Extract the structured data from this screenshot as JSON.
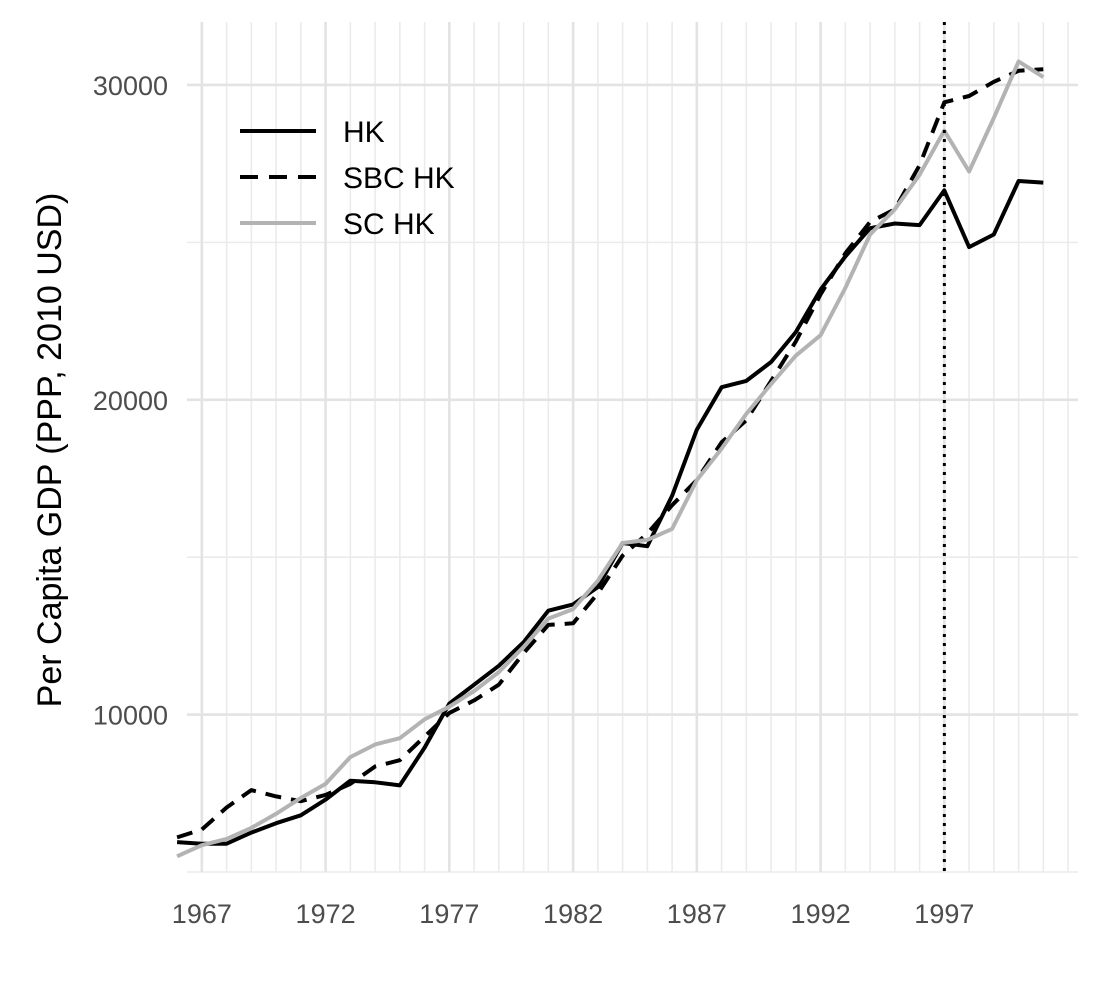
{
  "chart_data": {
    "type": "line",
    "title": "",
    "xlabel": "",
    "ylabel": "Per Capita GDP (PPP, 2010 USD)",
    "xlim": [
      1966.4,
      2002.4
    ],
    "ylim": [
      5000,
      32000
    ],
    "x_ticks": [
      1967,
      1972,
      1977,
      1982,
      1987,
      1992,
      1997
    ],
    "y_ticks": [
      10000,
      20000,
      30000
    ],
    "x_tick_labels": [
      "1967",
      "1972",
      "1977",
      "1982",
      "1987",
      "1992",
      "1997"
    ],
    "y_tick_labels": [
      "10000",
      "20000",
      "30000"
    ],
    "y_minor_ticks": [
      5000,
      15000,
      25000
    ],
    "grid": true,
    "legend_position": "top-left",
    "vline": {
      "x": 1997,
      "style": "dotted",
      "color": "#000000"
    },
    "x": [
      1966,
      1967,
      1968,
      1969,
      1970,
      1971,
      1972,
      1973,
      1974,
      1975,
      1976,
      1977,
      1978,
      1979,
      1980,
      1981,
      1982,
      1983,
      1984,
      1985,
      1986,
      1987,
      1988,
      1989,
      1990,
      1991,
      1992,
      1993,
      1994,
      1995,
      1996,
      1997,
      1998,
      1999,
      2000,
      2001
    ],
    "series": [
      {
        "name": "HK",
        "style": "solid",
        "color": "#000000",
        "values": [
          5950,
          5900,
          5900,
          6250,
          6550,
          6800,
          7300,
          7900,
          7850,
          7750,
          8950,
          10350,
          10950,
          11550,
          12300,
          13300,
          13500,
          14050,
          15450,
          15350,
          16950,
          19050,
          20400,
          20600,
          21200,
          22150,
          23500,
          24550,
          25450,
          25600,
          25550,
          26650,
          24850,
          25250,
          26950,
          26900
        ]
      },
      {
        "name": "SBC HK",
        "style": "dashed",
        "color": "#000000",
        "values": [
          6100,
          6350,
          7050,
          7600,
          7400,
          7250,
          7450,
          7800,
          8350,
          8550,
          9300,
          10050,
          10450,
          10950,
          11950,
          12850,
          12900,
          13850,
          15050,
          15750,
          16650,
          17450,
          18650,
          19350,
          20600,
          21850,
          23350,
          24650,
          25650,
          26050,
          27450,
          29450,
          29650,
          30100,
          30450,
          30500
        ]
      },
      {
        "name": "SC HK",
        "style": "solid",
        "color": "#b3b3b3",
        "values": [
          5500,
          5850,
          6050,
          6400,
          6850,
          7350,
          7800,
          8650,
          9050,
          9250,
          9850,
          10250,
          10750,
          11350,
          12150,
          13050,
          13350,
          14250,
          15450,
          15550,
          15900,
          17450,
          18450,
          19550,
          20500,
          21400,
          22050,
          23550,
          25250,
          26050,
          27150,
          28550,
          27250,
          28950,
          30750,
          30250
        ]
      }
    ]
  }
}
